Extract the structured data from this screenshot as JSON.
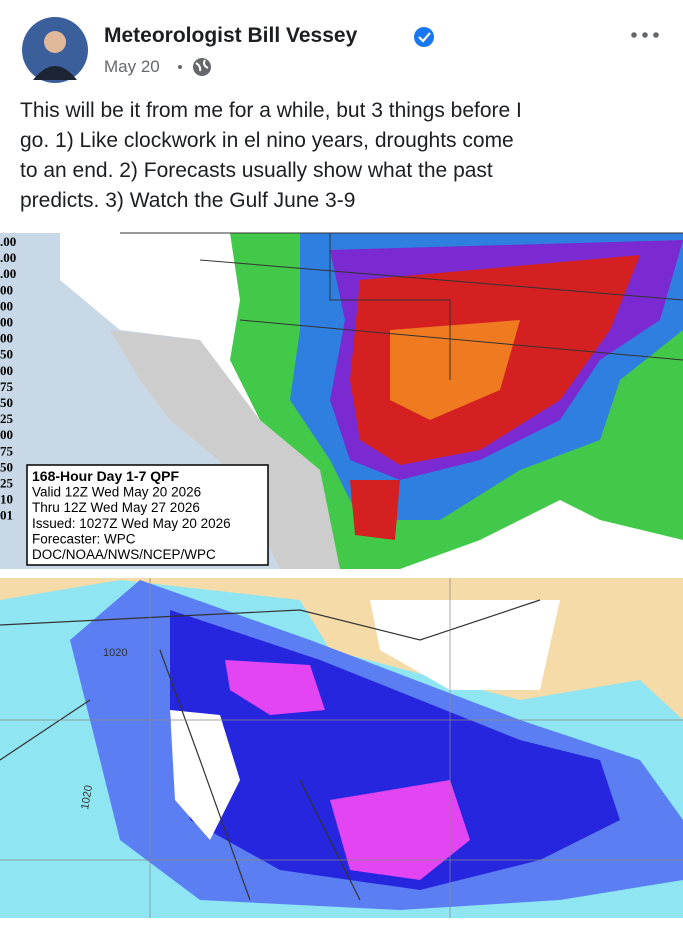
{
  "post": {
    "author": "Meteorologist Bill Vessey",
    "date": "May 20",
    "text_lines": [
      "This will be it from me for a while, but 3 things before I",
      "go. 1) Like clockwork in el nino years, droughts come",
      "to an end. 2) Forecasts usually show what the past",
      "predicts. 3) Watch the Gulf June 3-9"
    ]
  },
  "map1": {
    "scale_labels": [
      ".00",
      ".00",
      ".00",
      "00",
      "00",
      "00",
      "00",
      "50",
      "00",
      "75",
      "50",
      "25",
      "00",
      "75",
      "50",
      "25",
      "10",
      "01"
    ],
    "legend_lines": [
      "168-Hour Day 1-7 QPF",
      "Valid 12Z Wed May 20 2026",
      "Thru 12Z Wed May 27 2026",
      "Issued: 1027Z Wed May 20 2026",
      "Forecaster: WPC",
      "DOC/NOAA/NWS/NCEP/WPC"
    ]
  },
  "map2": {
    "isobar_labels": [
      "1020",
      "1020"
    ]
  }
}
